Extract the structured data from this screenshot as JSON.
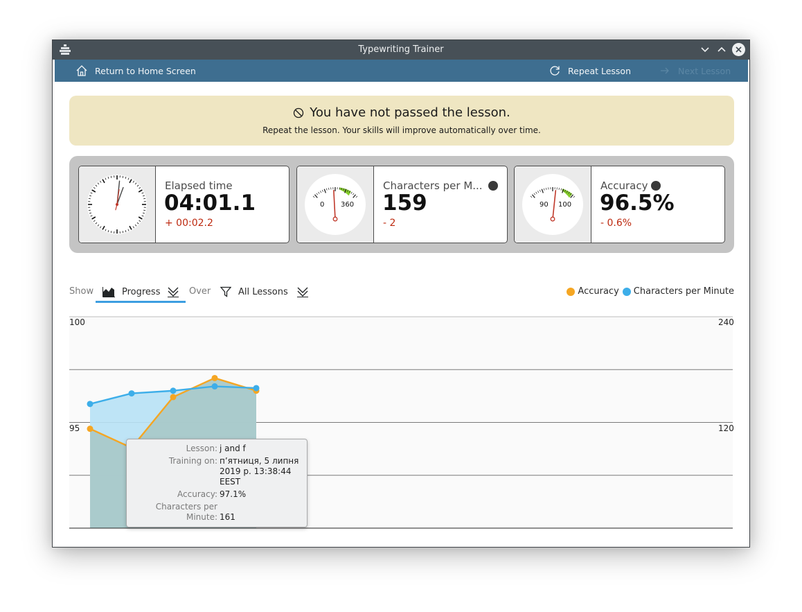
{
  "window": {
    "title": "Typewriting Trainer"
  },
  "icons": {
    "app": "keyboard-icon",
    "minimize": "chevron-down-icon",
    "maximize": "chevron-up-icon",
    "close": "close-icon",
    "home": "home-icon",
    "repeat": "refresh-icon",
    "next": "arrow-right-icon",
    "not_passed": "prohibited-icon",
    "progress": "area-chart-icon",
    "filter": "filter-icon",
    "expand": "double-chevron-down-icon"
  },
  "toolbar": {
    "home_label": "Return to Home Screen",
    "repeat_label": "Repeat Lesson",
    "next_label": "Next Lesson"
  },
  "banner": {
    "headline": "You have not passed the lesson.",
    "message": "Repeat the lesson. Your skills will improve automatically over time."
  },
  "stats": [
    {
      "label": "Elapsed time",
      "value": "04:01.1",
      "delta": "+ 00:02.2"
    },
    {
      "label": "Characters per M...",
      "value": "159",
      "delta": "- 2",
      "gauge_min": "0",
      "gauge_max": "360"
    },
    {
      "label": "Accuracy",
      "value": "96.5%",
      "delta": "- 0.6%",
      "gauge_min": "90",
      "gauge_max": "100"
    }
  ],
  "controls": {
    "show_label": "Show",
    "show_value": "Progress",
    "over_label": "Over",
    "over_value": "All Lessons"
  },
  "legend": [
    {
      "label": "Accuracy",
      "color": "#f5a623"
    },
    {
      "label": "Characters per Minute",
      "color": "#3daee9"
    }
  ],
  "axes": {
    "left_top": "100",
    "left_mid": "95",
    "right_top": "240",
    "right_mid": "120"
  },
  "tooltip": {
    "lesson_key": "Lesson:",
    "lesson_val": "j and f",
    "training_key": "Training on:",
    "training_val": "п’ятниця, 5 липня 2019 р. 13:38:44 EEST",
    "accuracy_key": "Accuracy:",
    "accuracy_val": "97.1%",
    "cpm_key": "Characters per Minute:",
    "cpm_val": "161"
  },
  "chart_data": {
    "type": "area",
    "x": [
      1,
      2,
      3,
      4,
      5
    ],
    "series": [
      {
        "name": "Accuracy",
        "axis": "left",
        "color": "#f5a623",
        "values": [
          94.7,
          93.8,
          96.2,
          97.1,
          96.5
        ]
      },
      {
        "name": "Characters per Minute",
        "axis": "right",
        "color": "#3daee9",
        "values": [
          141,
          153,
          156,
          161,
          159
        ]
      }
    ],
    "y_left": [
      90,
      100
    ],
    "y_right": [
      0,
      240
    ]
  }
}
